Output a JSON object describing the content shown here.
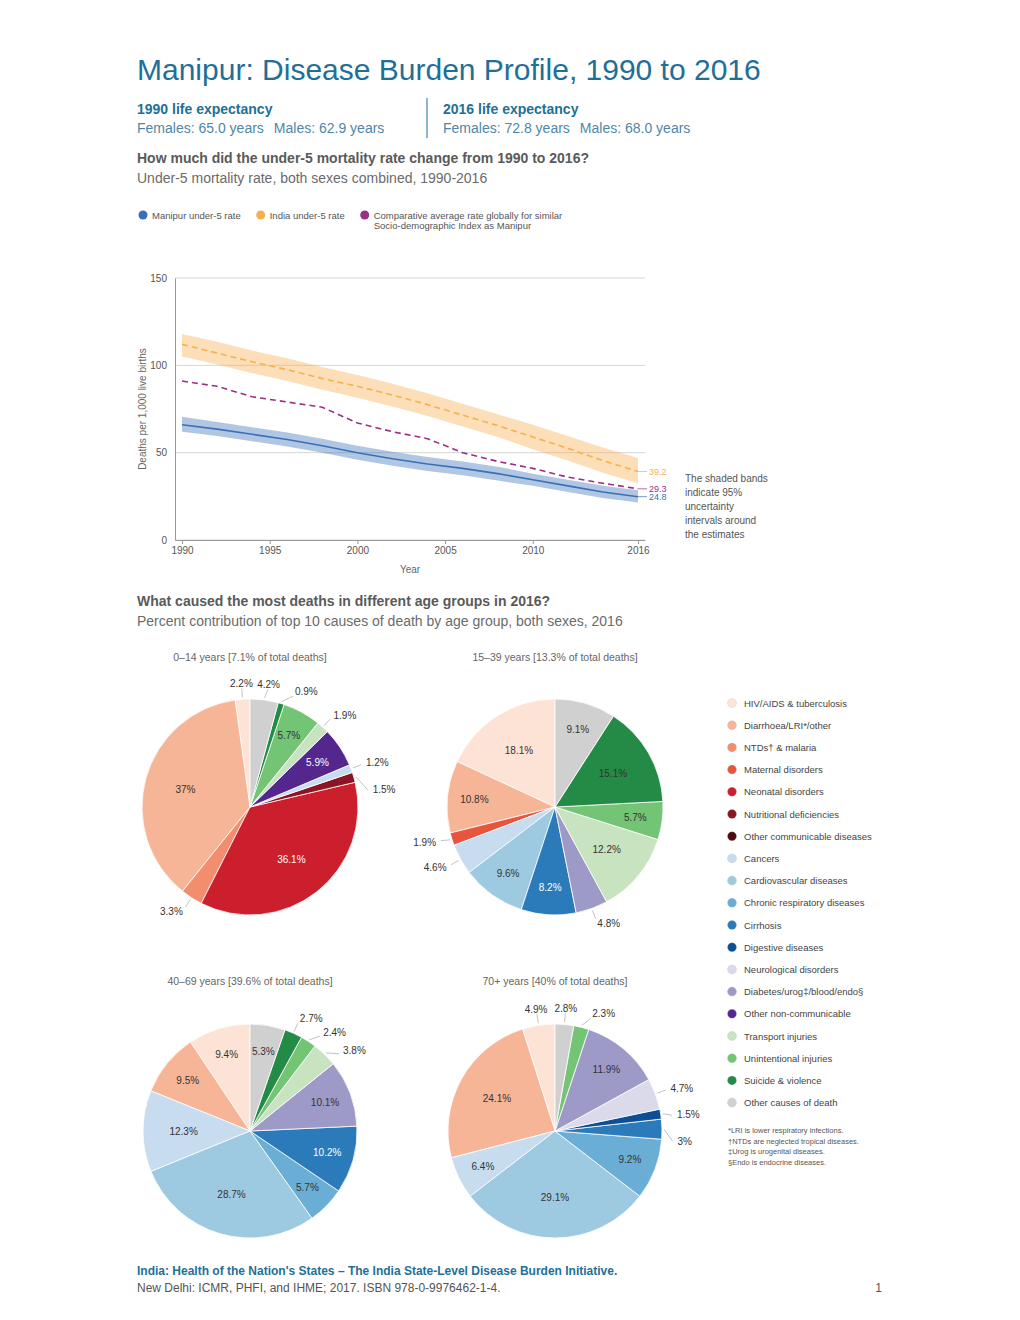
{
  "header": {
    "title": "Manipur: Disease Burden Profile, 1990 to 2016",
    "life_expectancy": [
      {
        "label": "1990 life expectancy",
        "females": "Females: 65.0 years",
        "males": "Males: 62.9 years"
      },
      {
        "label": "2016 life expectancy",
        "females": "Females: 72.8 years",
        "males": "Males: 68.0 years"
      }
    ]
  },
  "sections": [
    {
      "question": "How much did the under-5 mortality rate change from 1990 to 2016?",
      "subtitle": "Under-5 mortality rate, both sexes combined, 1990-2016"
    },
    {
      "question": "What caused the most deaths in different age groups in 2016?",
      "subtitle": "Percent contribution of top 10 causes of death by age group, both sexes, 2016"
    }
  ],
  "chart_data": [
    {
      "type": "line",
      "x_label": "Year",
      "y_label": "Deaths per 1,000 live births",
      "x": [
        1990,
        1992,
        1994,
        1996,
        1998,
        2000,
        2002,
        2004,
        2006,
        2008,
        2010,
        2012,
        2014,
        2016
      ],
      "xlim": [
        1989.6,
        2016.4
      ],
      "xticks": [
        1990,
        1995,
        2000,
        2005,
        2010,
        2016
      ],
      "ylim": [
        0,
        150
      ],
      "yticks": [
        0,
        50,
        100,
        150
      ],
      "grid": true,
      "legend": "top",
      "data_labels": true,
      "annotation": "The shaded bands indicate 95% uncertainty intervals around the estimates",
      "series": [
        {
          "name": "Manipur under-5 rate",
          "color": "#3a70b8",
          "line_style": "solid",
          "values": [
            66,
            63.5,
            60.5,
            57.5,
            54,
            50,
            46.5,
            43.5,
            41,
            38,
            34.5,
            31,
            27.5,
            24.8
          ],
          "lower": [
            62,
            59.5,
            56.5,
            53.5,
            50,
            46,
            42.5,
            39.5,
            37,
            34,
            31,
            27.5,
            24,
            21.5
          ],
          "upper": [
            70.5,
            67.5,
            64.5,
            61.5,
            58,
            54,
            50.5,
            47.5,
            45,
            42,
            38,
            34.5,
            31,
            28.5
          ]
        },
        {
          "name": "India under-5 rate",
          "color": "#f8b04f",
          "line_style": "dashed",
          "values": [
            112,
            107,
            102,
            97.5,
            92.5,
            88,
            83,
            77.5,
            71.5,
            65.5,
            59,
            52.5,
            45.5,
            39.2
          ],
          "lower": [
            105,
            100.5,
            95.5,
            91,
            86,
            81.5,
            76.5,
            71,
            65,
            59,
            52,
            45.5,
            38.5,
            32.5
          ],
          "upper": [
            118,
            113.5,
            108.5,
            104,
            99,
            94.5,
            89.5,
            84,
            78,
            72,
            66,
            59.5,
            53,
            47
          ]
        },
        {
          "name": "Comparative average rate globally for similar Socio-demographic Index as Manipur",
          "color": "#9b2f86",
          "line_style": "dashed",
          "values": [
            91,
            88,
            82,
            79,
            76,
            67,
            62,
            58,
            50,
            45,
            41,
            36,
            32.5,
            29.3
          ]
        }
      ]
    },
    {
      "type": "pie",
      "title": "0–14 years [7.1% of total deaths]",
      "data_labels": true,
      "categories": [
        "HIV/AIDS & tuberculosis",
        "Diarrhoea/LRI*/other",
        "NTDs† & malaria",
        "Neonatal disorders",
        "Nutritional deficiencies",
        "Cancers",
        "Other non-communicable",
        "Transport injuries",
        "Unintentional injuries",
        "Suicide & violence",
        "Other causes of death"
      ],
      "values": [
        2.2,
        37,
        3.3,
        36.1,
        1.5,
        1.2,
        5.9,
        1.9,
        5.7,
        0.9,
        4.2
      ],
      "value_labels": [
        "2.2%",
        "37%",
        "3.3%",
        "36.1%",
        "1.5%",
        "1.2%",
        "5.9%",
        "1.9%",
        "5.7%",
        "0.9%",
        "4.2%"
      ]
    },
    {
      "type": "pie",
      "title": "15–39 years [13.3% of total deaths]",
      "data_labels": true,
      "categories": [
        "HIV/AIDS & tuberculosis",
        "Diarrhoea/LRI*/other",
        "Maternal disorders",
        "Cancers",
        "Cardiovascular diseases",
        "Cirrhosis",
        "Diabetes/urog‡/blood/endo§",
        "Transport injuries",
        "Unintentional injuries",
        "Suicide & violence",
        "Other causes of death"
      ],
      "values": [
        18.1,
        10.8,
        1.9,
        4.6,
        9.6,
        8.2,
        4.8,
        12.2,
        5.7,
        15.1,
        9.1
      ],
      "value_labels": [
        "18.1%",
        "10.8%",
        "1.9%",
        "4.6%",
        "9.6%",
        "8.2%",
        "4.8%",
        "12.2%",
        "5.7%",
        "15.1%",
        "9.1%"
      ]
    },
    {
      "type": "pie",
      "title": "40–69 years [39.6% of total deaths]",
      "data_labels": true,
      "categories": [
        "HIV/AIDS & tuberculosis",
        "Diarrhoea/LRI*/other",
        "Cancers",
        "Cardiovascular diseases",
        "Chronic respiratory diseases",
        "Cirrhosis",
        "Diabetes/urog‡/blood/endo§",
        "Transport injuries",
        "Unintentional injuries",
        "Suicide & violence",
        "Other causes of death"
      ],
      "values": [
        9.4,
        9.5,
        12.3,
        28.7,
        5.7,
        10.2,
        10.1,
        3.8,
        2.4,
        2.7,
        5.3
      ],
      "value_labels": [
        "9.4%",
        "9.5%",
        "12.3%",
        "28.7%",
        "5.7%",
        "10.2%",
        "10.1%",
        "3.8%",
        "2.4%",
        "2.7%",
        "5.3%"
      ]
    },
    {
      "type": "pie",
      "title": "70+ years [40% of total deaths]",
      "data_labels": true,
      "categories": [
        "HIV/AIDS & tuberculosis",
        "Diarrhoea/LRI*/other",
        "Cancers",
        "Cardiovascular diseases",
        "Chronic respiratory diseases",
        "Cirrhosis",
        "Digestive diseases",
        "Neurological disorders",
        "Diabetes/urog‡/blood/endo§",
        "Unintentional injuries",
        "Other causes of death"
      ],
      "values": [
        4.9,
        24.1,
        6.4,
        29.1,
        9.2,
        3,
        1.5,
        4.7,
        11.9,
        2.3,
        2.8
      ],
      "value_labels": [
        "4.9%",
        "24.1%",
        "6.4%",
        "29.1%",
        "9.2%",
        "3%",
        "1.5%",
        "4.7%",
        "11.9%",
        "2.3%",
        "2.8%"
      ]
    }
  ],
  "cause_legend": [
    {
      "name": "HIV/AIDS & tuberculosis",
      "color": "#fde3d5"
    },
    {
      "name": "Diarrhoea/LRI*/other",
      "color": "#f7b597"
    },
    {
      "name": "NTDs† & malaria",
      "color": "#f28e6e"
    },
    {
      "name": "Maternal disorders",
      "color": "#e8553e"
    },
    {
      "name": "Neonatal disorders",
      "color": "#cc1f2e"
    },
    {
      "name": "Nutritional deficiencies",
      "color": "#8c1525"
    },
    {
      "name": "Other communicable diseases",
      "color": "#4d0b10"
    },
    {
      "name": "Cancers",
      "color": "#c7dcef"
    },
    {
      "name": "Cardiovascular diseases",
      "color": "#9ecae1"
    },
    {
      "name": "Chronic respiratory diseases",
      "color": "#6aaed6"
    },
    {
      "name": "Cirrhosis",
      "color": "#2b7bba"
    },
    {
      "name": "Digestive diseases",
      "color": "#0d4f94"
    },
    {
      "name": "Neurological disorders",
      "color": "#dadaeb"
    },
    {
      "name": "Diabetes/urog‡/blood/endo§",
      "color": "#9e9ac8"
    },
    {
      "name": "Other non-communicable",
      "color": "#54278f"
    },
    {
      "name": "Transport injuries",
      "color": "#c7e3bf"
    },
    {
      "name": "Unintentional injuries",
      "color": "#74c476"
    },
    {
      "name": "Suicide & violence",
      "color": "#238b45"
    },
    {
      "name": "Other causes of death",
      "color": "#d0d0d0"
    }
  ],
  "footnotes": [
    "*LRI is lower respiratory infections.",
    "†NTDs are neglected tropical diseases.",
    "‡Urog is urogenital diseases.",
    "§Endo is endocrine diseases."
  ],
  "footer": {
    "citation": "India: Health of the Nation's States – The India State-Level Disease Burden Initiative.",
    "publisher": "New Delhi: ICMR, PHFI, and IHME; 2017. ISBN 978-0-9976462-1-4.",
    "page": "1"
  }
}
